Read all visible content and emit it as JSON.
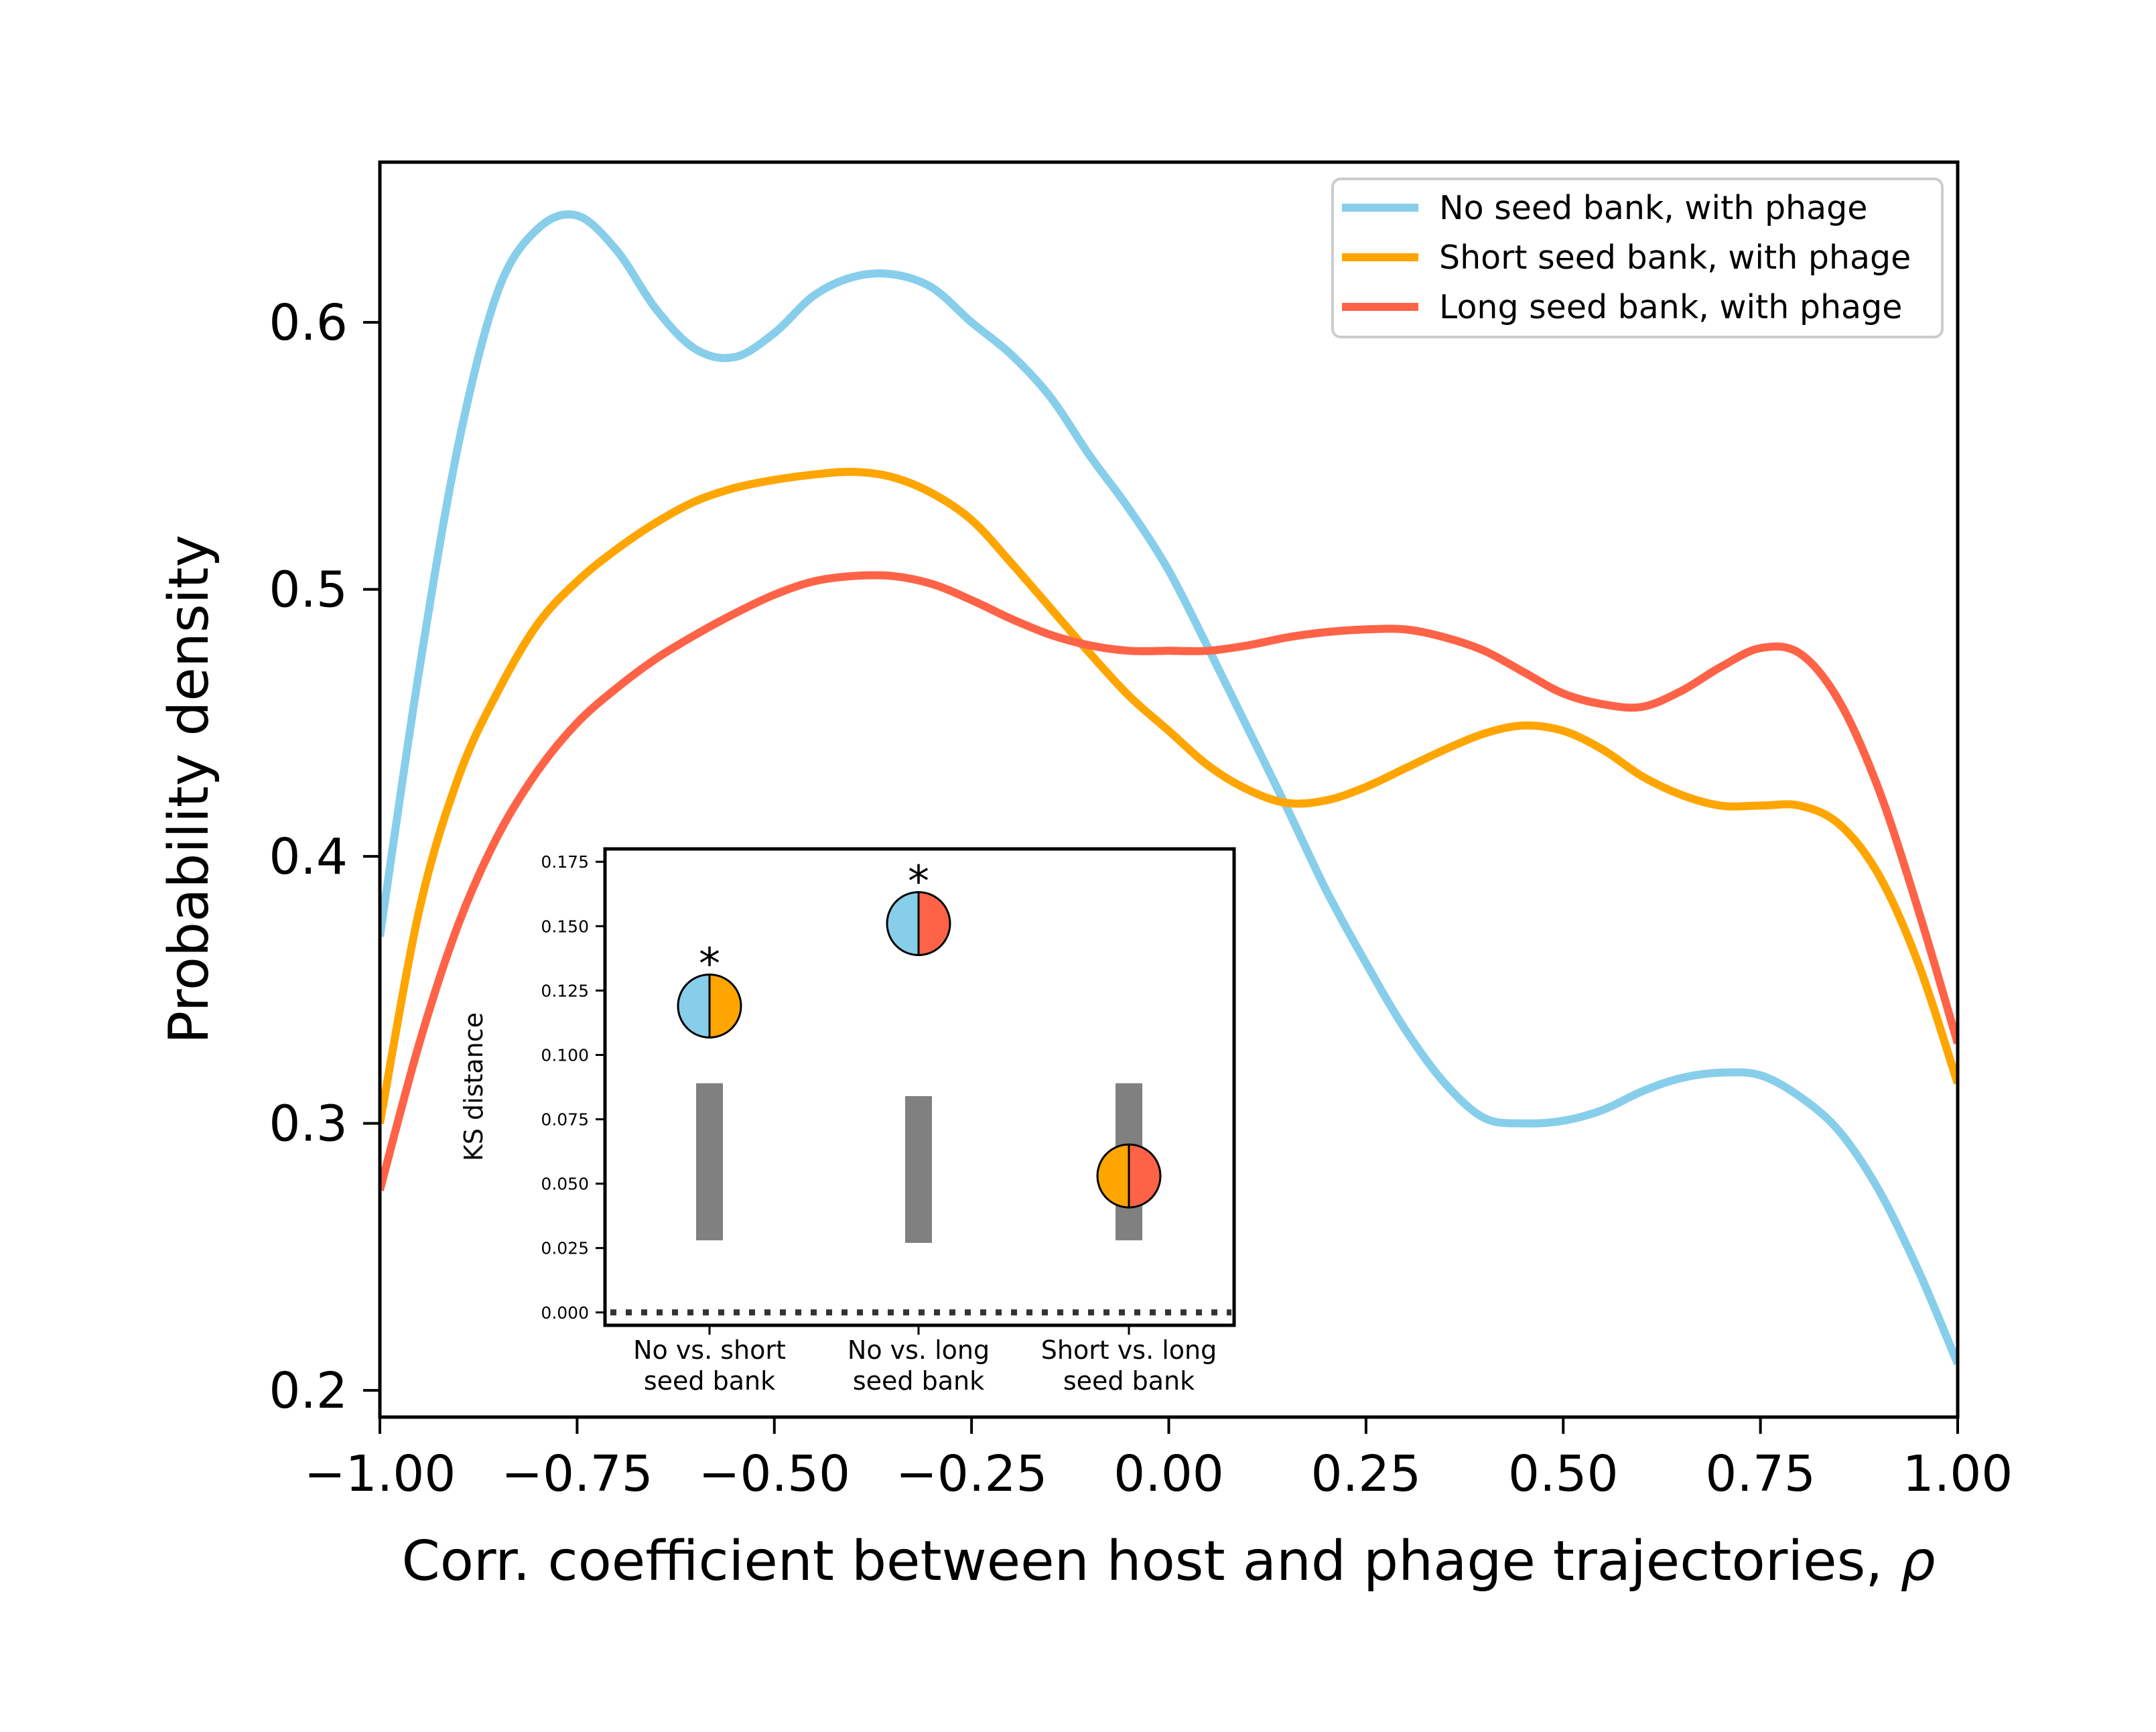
{
  "chart_data": [
    {
      "type": "line",
      "xlabel": "Corr. coefficient between host and phage trajectories, ",
      "xlabel_symbol": "ρ",
      "ylabel": "Probability density",
      "xlim": [
        -1.0,
        1.0
      ],
      "ylim": [
        0.19,
        0.66
      ],
      "xticks": [
        -1.0,
        -0.75,
        -0.5,
        -0.25,
        0.0,
        0.25,
        0.5,
        0.75,
        1.0
      ],
      "xtick_labels": [
        "−1.00",
        "−0.75",
        "−0.50",
        "−0.25",
        "0.00",
        "0.25",
        "0.50",
        "0.75",
        "1.00"
      ],
      "yticks": [
        0.2,
        0.3,
        0.4,
        0.5,
        0.6
      ],
      "ytick_labels": [
        "0.2",
        "0.3",
        "0.4",
        "0.5",
        "0.6"
      ],
      "grid": false,
      "legend_position": "top-right",
      "series": [
        {
          "name": "No seed bank, with phage",
          "color": "#87CEEB",
          "x": [
            -1.0,
            -0.95,
            -0.9,
            -0.85,
            -0.8,
            -0.75,
            -0.7,
            -0.65,
            -0.6,
            -0.55,
            -0.5,
            -0.45,
            -0.4,
            -0.35,
            -0.3,
            -0.25,
            -0.2,
            -0.15,
            -0.1,
            -0.05,
            0.0,
            0.05,
            0.1,
            0.15,
            0.2,
            0.25,
            0.3,
            0.35,
            0.4,
            0.45,
            0.5,
            0.55,
            0.6,
            0.65,
            0.7,
            0.75,
            0.8,
            0.85,
            0.9,
            0.95,
            1.0
          ],
          "y": [
            0.37,
            0.47,
            0.555,
            0.612,
            0.635,
            0.64,
            0.627,
            0.605,
            0.59,
            0.587,
            0.596,
            0.61,
            0.617,
            0.618,
            0.613,
            0.6,
            0.588,
            0.572,
            0.55,
            0.53,
            0.507,
            0.478,
            0.448,
            0.418,
            0.387,
            0.36,
            0.335,
            0.315,
            0.302,
            0.3,
            0.301,
            0.305,
            0.312,
            0.317,
            0.319,
            0.318,
            0.31,
            0.297,
            0.275,
            0.245,
            0.21
          ]
        },
        {
          "name": "Short seed bank, with phage",
          "color": "#FFA500",
          "x": [
            -1.0,
            -0.95,
            -0.9,
            -0.85,
            -0.8,
            -0.75,
            -0.7,
            -0.65,
            -0.6,
            -0.55,
            -0.5,
            -0.45,
            -0.4,
            -0.35,
            -0.3,
            -0.25,
            -0.2,
            -0.15,
            -0.1,
            -0.05,
            0.0,
            0.05,
            0.1,
            0.15,
            0.2,
            0.25,
            0.3,
            0.35,
            0.4,
            0.45,
            0.5,
            0.55,
            0.6,
            0.65,
            0.7,
            0.75,
            0.8,
            0.85,
            0.9,
            0.95,
            1.0
          ],
          "y": [
            0.3,
            0.38,
            0.43,
            0.462,
            0.487,
            0.503,
            0.515,
            0.525,
            0.533,
            0.538,
            0.541,
            0.543,
            0.544,
            0.542,
            0.536,
            0.526,
            0.51,
            0.493,
            0.476,
            0.46,
            0.447,
            0.434,
            0.425,
            0.42,
            0.421,
            0.426,
            0.433,
            0.44,
            0.446,
            0.449,
            0.447,
            0.44,
            0.43,
            0.423,
            0.419,
            0.419,
            0.419,
            0.412,
            0.393,
            0.36,
            0.315
          ]
        },
        {
          "name": "Long seed bank, with phage",
          "color": "#FF6347",
          "x": [
            -1.0,
            -0.95,
            -0.9,
            -0.85,
            -0.8,
            -0.75,
            -0.7,
            -0.65,
            -0.6,
            -0.55,
            -0.5,
            -0.45,
            -0.4,
            -0.35,
            -0.3,
            -0.25,
            -0.2,
            -0.15,
            -0.1,
            -0.05,
            0.0,
            0.05,
            0.1,
            0.15,
            0.2,
            0.25,
            0.3,
            0.35,
            0.4,
            0.45,
            0.5,
            0.55,
            0.6,
            0.65,
            0.7,
            0.75,
            0.8,
            0.85,
            0.9,
            0.95,
            1.0
          ],
          "y": [
            0.275,
            0.33,
            0.375,
            0.408,
            0.432,
            0.45,
            0.463,
            0.474,
            0.483,
            0.491,
            0.498,
            0.503,
            0.505,
            0.505,
            0.502,
            0.496,
            0.489,
            0.483,
            0.479,
            0.477,
            0.477,
            0.477,
            0.479,
            0.482,
            0.484,
            0.485,
            0.485,
            0.482,
            0.477,
            0.469,
            0.461,
            0.457,
            0.456,
            0.462,
            0.471,
            0.478,
            0.476,
            0.458,
            0.425,
            0.38,
            0.33
          ]
        }
      ]
    },
    {
      "type": "scatter",
      "xlabel": "",
      "ylabel": "KS distance",
      "ylim": [
        -0.005,
        0.18
      ],
      "yticks": [
        0.0,
        0.025,
        0.05,
        0.075,
        0.1,
        0.125,
        0.15,
        0.175
      ],
      "ytick_labels": [
        "0.000",
        "0.025",
        "0.050",
        "0.075",
        "0.100",
        "0.125",
        "0.150",
        "0.175"
      ],
      "grid": false,
      "zero_line": "dotted",
      "categories": [
        "No vs. short\nseed bank",
        "No vs. long\nseed bank",
        "Short vs. long\nseed bank"
      ],
      "category_lines": [
        [
          "No vs. short",
          "seed bank"
        ],
        [
          "No vs. long",
          "seed bank"
        ],
        [
          "Short vs. long",
          "seed bank"
        ]
      ],
      "values": [
        0.119,
        0.151,
        0.053
      ],
      "null_ranges": [
        [
          0.028,
          0.089
        ],
        [
          0.027,
          0.084
        ],
        [
          0.028,
          0.089
        ]
      ],
      "null_range_color": "#808080",
      "marker_colors": [
        [
          "#87CEEB",
          "#FFA500"
        ],
        [
          "#87CEEB",
          "#FF6347"
        ],
        [
          "#FFA500",
          "#FF6347"
        ]
      ],
      "significance": [
        "*",
        "*",
        ""
      ]
    }
  ]
}
